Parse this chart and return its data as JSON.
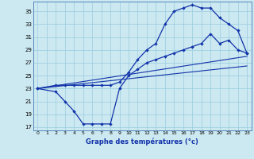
{
  "xlabel": "Graphe des températures (°c)",
  "bg_color": "#cce8f0",
  "grid_color": "#99cce0",
  "line_color": "#1133aa",
  "spine_color": "#5588bb",
  "xlim": [
    -0.5,
    23.5
  ],
  "ylim": [
    16.5,
    36.5
  ],
  "yticks": [
    17,
    19,
    21,
    23,
    25,
    27,
    29,
    31,
    33,
    35
  ],
  "xticks": [
    0,
    1,
    2,
    3,
    4,
    5,
    6,
    7,
    8,
    9,
    10,
    11,
    12,
    13,
    14,
    15,
    16,
    17,
    18,
    19,
    20,
    21,
    22,
    23
  ],
  "curve_min_x": [
    0,
    2,
    3,
    4,
    5,
    6,
    7,
    8,
    9,
    10,
    11,
    12,
    13,
    14,
    15,
    16,
    17,
    18,
    19,
    20,
    21,
    22,
    23
  ],
  "curve_min_y": [
    23,
    22.5,
    21,
    19.5,
    17.5,
    17.5,
    17.5,
    17.5,
    23,
    25,
    26,
    27,
    27.5,
    28,
    28.5,
    29,
    29.5,
    30,
    31.5,
    30,
    30.5,
    29,
    28.5
  ],
  "curve_max_x": [
    0,
    2,
    3,
    4,
    5,
    6,
    7,
    8,
    9,
    10,
    11,
    12,
    13,
    14,
    15,
    16,
    17,
    18,
    19,
    20,
    21,
    22,
    23
  ],
  "curve_max_y": [
    23,
    23.5,
    23.5,
    23.5,
    23.5,
    23.5,
    23.5,
    23.5,
    24,
    25.5,
    27.5,
    29,
    30,
    33,
    35,
    35.5,
    36,
    35.5,
    35.5,
    34,
    33,
    32,
    28.5
  ],
  "trend1_x": [
    0,
    23
  ],
  "trend1_y": [
    23,
    26.5
  ],
  "trend2_x": [
    0,
    23
  ],
  "trend2_y": [
    23,
    28
  ]
}
